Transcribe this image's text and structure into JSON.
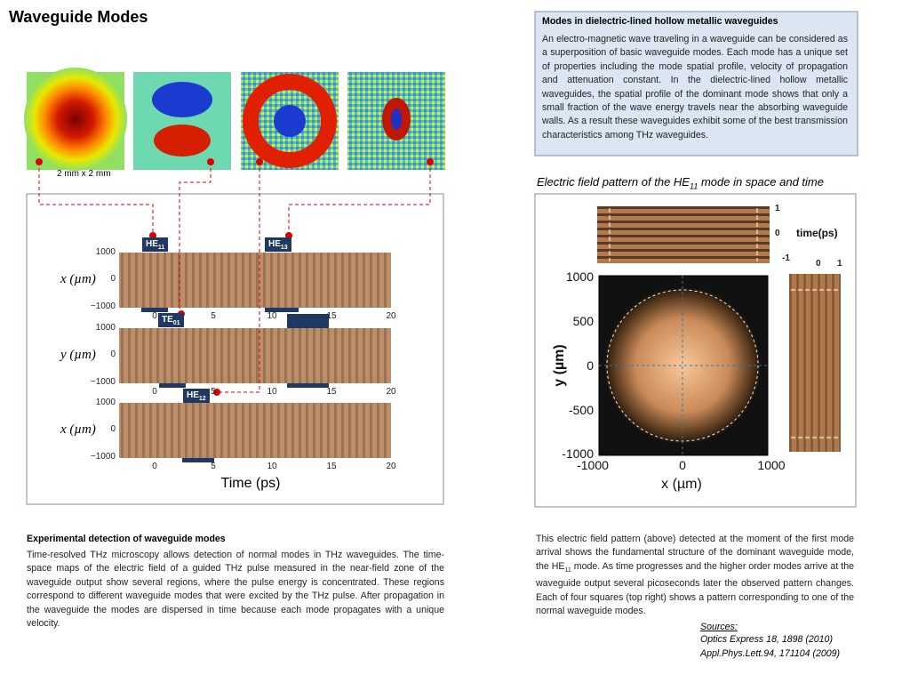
{
  "title": "Waveguide Modes",
  "scale_label": "2 mm  x  2 mm",
  "left_figure": {
    "modes": [
      {
        "base": "HE",
        "sub": "11"
      },
      {
        "base": "HE",
        "sub": "13"
      },
      {
        "base": "TE",
        "sub": "01"
      },
      {
        "base": "HE",
        "sub": "12"
      }
    ],
    "panels": [
      {
        "axis_label": "x (µm)",
        "y_ticks": [
          "1000",
          "0",
          "−1000"
        ]
      },
      {
        "axis_label": "y (µm)",
        "y_ticks": [
          "1000",
          "0",
          "−1000"
        ]
      },
      {
        "axis_label": "x (µm)",
        "y_ticks": [
          "1000",
          "0",
          "−1000"
        ]
      }
    ],
    "x_ticks": [
      "0",
      "5",
      "10",
      "15",
      "20"
    ],
    "x_label": "Time (ps)"
  },
  "info_box": {
    "heading": "Modes in dielectric-lined hollow metallic waveguides",
    "body": "An electro-magnetic wave traveling in a waveguide can be considered as a superposition of basic waveguide modes. Each mode has a unique set of properties including the mode spatial profile, velocity of propagation and attenuation constant. In the dielectric-lined hollow metallic waveguides, the spatial profile of the dominant mode shows that only a small fraction of the wave energy travels near the absorbing waveguide walls. As a result these waveguides exhibit some of the best transmission characteristics among THz waveguides."
  },
  "right_figure": {
    "caption": [
      "Electric field pattern of the HE",
      "11",
      " mode in space and time"
    ],
    "y_ticks": [
      "1000",
      "500",
      "0",
      "-500",
      "-1000"
    ],
    "x_ticks": [
      "-1000",
      "0",
      "1000"
    ],
    "x_label": "x (µm)",
    "y_label": "y (µm)",
    "time_ticks": [
      "1",
      "0",
      "-1"
    ],
    "time_label": "time(ps)",
    "bottom_time_ticks": [
      "0",
      "1"
    ]
  },
  "left_text": {
    "heading": "Experimental detection of waveguide modes",
    "body": "Time-resolved THz microscopy allows detection of normal modes in THz waveguides. The time-space maps of the electric field of a guided THz pulse measured in the near-field zone of the waveguide output show several regions, where the pulse energy is concentrated. These regions correspond to different waveguide modes that were excited by the THz pulse. After propagation in the waveguide the modes are dispersed in time because each mode propagates with a unique velocity."
  },
  "right_text": {
    "body": [
      "This electric field pattern (above) detected at the moment of the first mode arrival shows the fundamental structure of the dominant waveguide mode, the HE",
      "11",
      " mode. As time progresses and the higher order modes arrive at the waveguide output several picoseconds later the observed pattern changes. Each of four squares (top right) shows a pattern corresponding to one of the normal waveguide modes."
    ]
  },
  "sources": {
    "heading": "Sources:",
    "items": [
      "Optics Express 18, 1898 (2010)",
      "Appl.Phys.Lett.94, 171104 (2009)"
    ]
  }
}
